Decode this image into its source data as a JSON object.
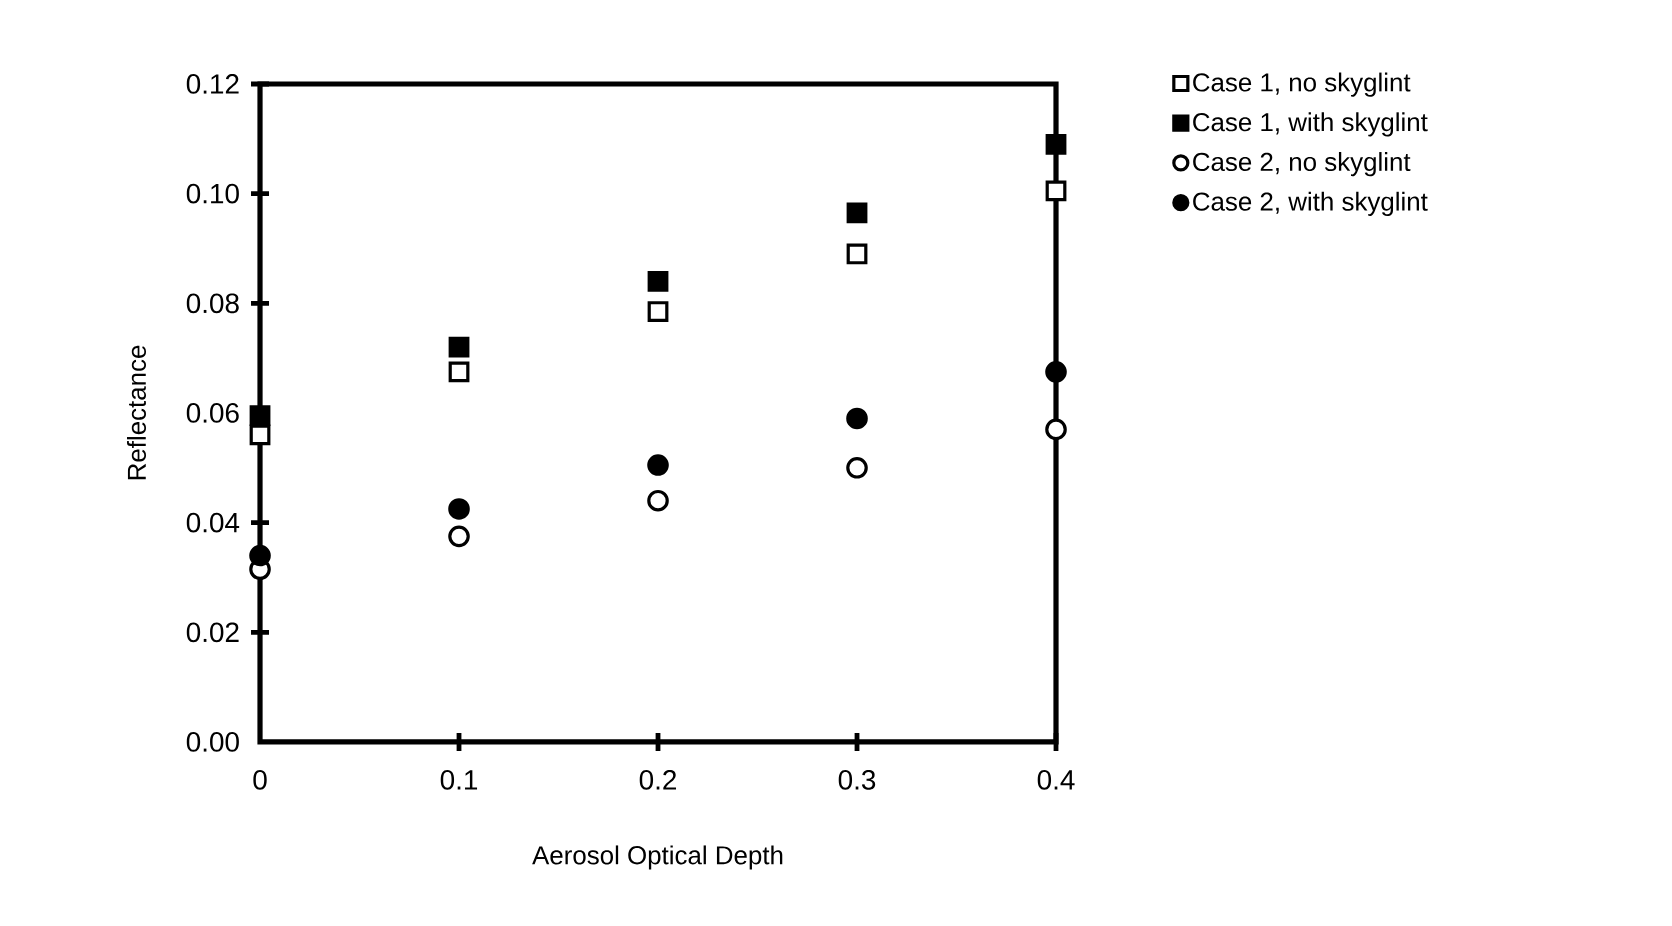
{
  "chart_data": {
    "type": "scatter",
    "xlabel": "Aerosol Optical Depth",
    "ylabel": "Reflectance",
    "x": [
      0,
      0.1,
      0.2,
      0.3,
      0.4
    ],
    "xlim": [
      0,
      0.4
    ],
    "ylim": [
      0,
      0.12
    ],
    "xticks": [
      0,
      0.1,
      0.2,
      0.3,
      0.4
    ],
    "yticks": [
      {
        "value": 0,
        "label": "0.00"
      },
      {
        "value": 0.02,
        "label": "0.02"
      },
      {
        "value": 0.04,
        "label": "0.04"
      },
      {
        "value": 0.06,
        "label": "0.06"
      },
      {
        "value": 0.08,
        "label": "0.08"
      },
      {
        "value": 0.1,
        "label": "0.10"
      },
      {
        "value": 0.12,
        "label": "0.12"
      }
    ],
    "grid": false,
    "legend": "top right",
    "series": [
      {
        "name": "Case 1, no skyglint",
        "color": "#ffffff",
        "marker": "square",
        "values": [
          0.056,
          0.0675,
          0.0785,
          0.089,
          0.1005
        ]
      },
      {
        "name": "Case 1, with skyglint",
        "color": "#000000",
        "marker": "square",
        "values": [
          0.0595,
          0.072,
          0.084,
          0.0965,
          0.109
        ]
      },
      {
        "name": "Case 2, no skyglint",
        "color": "#ffffff",
        "marker": "circle",
        "values": [
          0.0315,
          0.0375,
          0.044,
          0.05,
          0.057
        ]
      },
      {
        "name": "Case 2, with skyglint",
        "color": "#000000",
        "marker": "circle",
        "values": [
          0.034,
          0.0425,
          0.0505,
          0.059,
          0.0675
        ]
      }
    ]
  }
}
